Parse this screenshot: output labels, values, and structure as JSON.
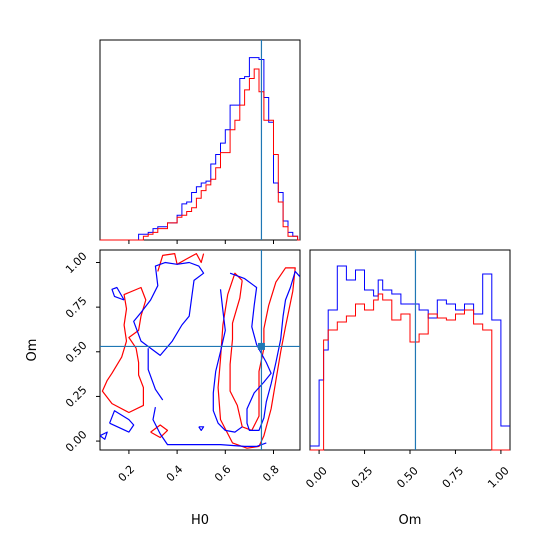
{
  "colors": {
    "series_a": "#0000ff",
    "series_b": "#ff0000",
    "truth": "#1f77b4"
  },
  "chart_data": [
    {
      "type": "histogram",
      "panel": "H0 marginal",
      "xlim": [
        0.08,
        0.91
      ],
      "bin_edges": [
        0.08,
        0.1,
        0.12,
        0.14,
        0.16,
        0.18,
        0.2,
        0.22,
        0.24,
        0.26,
        0.28,
        0.3,
        0.32,
        0.34,
        0.36,
        0.38,
        0.4,
        0.42,
        0.44,
        0.46,
        0.48,
        0.5,
        0.52,
        0.54,
        0.56,
        0.58,
        0.6,
        0.62,
        0.64,
        0.66,
        0.68,
        0.7,
        0.72,
        0.74,
        0.76,
        0.78,
        0.8,
        0.82,
        0.84,
        0.86,
        0.88,
        0.9,
        0.91
      ],
      "series": [
        {
          "color": "blue",
          "values": [
            0,
            0,
            0,
            0,
            0,
            0,
            0,
            0,
            0.03,
            0.03,
            0.04,
            0.06,
            0.07,
            0.07,
            0.09,
            0.09,
            0.13,
            0.19,
            0.2,
            0.25,
            0.28,
            0.3,
            0.31,
            0.4,
            0.45,
            0.51,
            0.58,
            0.71,
            0.71,
            0.85,
            0.86,
            0.96,
            0.96,
            0.95,
            0.75,
            0.62,
            0.3,
            0.25,
            0.1,
            0.04,
            0.02,
            0
          ]
        },
        {
          "color": "red",
          "values": [
            0,
            0,
            0,
            0,
            0,
            0,
            0,
            0,
            0,
            0.02,
            0.03,
            0.04,
            0.06,
            0.06,
            0.09,
            0.09,
            0.12,
            0.13,
            0.15,
            0.17,
            0.22,
            0.26,
            0.29,
            0.32,
            0.38,
            0.46,
            0.46,
            0.58,
            0.63,
            0.71,
            0.79,
            0.85,
            0.9,
            0.78,
            0.63,
            0.63,
            0.45,
            0.2,
            0.07,
            0.02,
            0.02,
            0
          ]
        }
      ],
      "truth": 0.75,
      "xticks": [
        0.2,
        0.4,
        0.6,
        0.8
      ]
    },
    {
      "type": "contour",
      "panel": "H0 vs Om joint",
      "xlabel": "H0",
      "ylabel": "Om",
      "xlim": [
        0.08,
        0.91
      ],
      "ylim": [
        -0.05,
        1.07
      ],
      "truth": {
        "x": 0.75,
        "y": 0.53
      },
      "xticks": [
        0.2,
        0.4,
        0.6,
        0.8
      ],
      "xticklabels": [
        "0.2",
        "0.4",
        "0.6",
        "0.8"
      ],
      "yticks": [
        0.0,
        0.25,
        0.5,
        0.75,
        1.0
      ],
      "yticklabels": [
        "0.00",
        "0.25",
        "0.50",
        "0.75",
        "1.00"
      ],
      "series": [
        {
          "color": "red",
          "contours": [
            [
              [
                0.13,
                0.38
              ],
              [
                0.17,
                0.47
              ],
              [
                0.19,
                0.56
              ],
              [
                0.18,
                0.65
              ],
              [
                0.19,
                0.74
              ],
              [
                0.18,
                0.82
              ],
              [
                0.25,
                0.86
              ],
              [
                0.27,
                0.79
              ],
              [
                0.25,
                0.7
              ],
              [
                0.24,
                0.62
              ],
              [
                0.2,
                0.58
              ],
              [
                0.23,
                0.52
              ],
              [
                0.24,
                0.44
              ],
              [
                0.24,
                0.37
              ],
              [
                0.26,
                0.3
              ],
              [
                0.26,
                0.2
              ],
              [
                0.2,
                0.16
              ],
              [
                0.13,
                0.21
              ],
              [
                0.09,
                0.28
              ],
              [
                0.11,
                0.34
              ],
              [
                0.13,
                0.38
              ]
            ],
            [
              [
                0.67,
                0.9
              ],
              [
                0.66,
                0.8
              ],
              [
                0.63,
                0.66
              ],
              [
                0.63,
                0.57
              ],
              [
                0.62,
                0.43
              ],
              [
                0.62,
                0.28
              ],
              [
                0.65,
                0.2
              ],
              [
                0.67,
                0.08
              ],
              [
                0.71,
                0.06
              ],
              [
                0.74,
                0.14
              ],
              [
                0.74,
                0.27
              ],
              [
                0.74,
                0.39
              ],
              [
                0.76,
                0.52
              ],
              [
                0.76,
                0.63
              ],
              [
                0.78,
                0.76
              ],
              [
                0.81,
                0.89
              ],
              [
                0.85,
                0.97
              ],
              [
                0.89,
                0.97
              ],
              [
                0.88,
                0.84
              ],
              [
                0.85,
                0.64
              ],
              [
                0.83,
                0.5
              ],
              [
                0.81,
                0.34
              ],
              [
                0.79,
                0.18
              ],
              [
                0.76,
                0.03
              ],
              [
                0.74,
                -0.03
              ],
              [
                0.69,
                -0.04
              ],
              [
                0.63,
                -0.01
              ],
              [
                0.58,
                0.12
              ],
              [
                0.57,
                0.3
              ],
              [
                0.58,
                0.46
              ],
              [
                0.59,
                0.65
              ],
              [
                0.61,
                0.82
              ],
              [
                0.64,
                0.94
              ],
              [
                0.67,
                0.9
              ]
            ],
            [
              [
                0.32,
                0.95
              ],
              [
                0.34,
                1.04
              ],
              [
                0.39,
                1.05
              ],
              [
                0.4,
                0.99
              ],
              [
                0.44,
                1.02
              ],
              [
                0.48,
                1.05
              ],
              [
                0.5,
                1.0
              ],
              [
                0.51,
                1.05
              ]
            ],
            [
              [
                0.29,
                0.05
              ],
              [
                0.33,
                0.02
              ],
              [
                0.36,
                0.06
              ],
              [
                0.33,
                0.09
              ],
              [
                0.29,
                0.05
              ]
            ]
          ]
        },
        {
          "color": "blue",
          "contours": [
            [
              [
                0.42,
                0.65
              ],
              [
                0.38,
                0.56
              ],
              [
                0.33,
                0.48
              ],
              [
                0.25,
                0.56
              ],
              [
                0.22,
                0.67
              ],
              [
                0.25,
                0.72
              ],
              [
                0.29,
                0.79
              ],
              [
                0.32,
                0.87
              ],
              [
                0.31,
                0.98
              ],
              [
                0.35,
                1.0
              ],
              [
                0.4,
                0.99
              ],
              [
                0.45,
                1.0
              ],
              [
                0.49,
                0.98
              ],
              [
                0.51,
                0.94
              ],
              [
                0.47,
                0.9
              ],
              [
                0.46,
                0.8
              ],
              [
                0.45,
                0.7
              ],
              [
                0.42,
                0.65
              ]
            ],
            [
              [
                0.62,
                0.94
              ],
              [
                0.68,
                0.91
              ],
              [
                0.73,
                0.86
              ],
              [
                0.72,
                0.76
              ],
              [
                0.71,
                0.64
              ],
              [
                0.73,
                0.54
              ],
              [
                0.77,
                0.44
              ],
              [
                0.79,
                0.38
              ],
              [
                0.76,
                0.33
              ],
              [
                0.72,
                0.27
              ],
              [
                0.69,
                0.18
              ],
              [
                0.69,
                0.1
              ],
              [
                0.7,
                0.06
              ],
              [
                0.74,
                0.06
              ],
              [
                0.76,
                0.13
              ],
              [
                0.77,
                0.22
              ],
              [
                0.79,
                0.32
              ],
              [
                0.81,
                0.44
              ],
              [
                0.83,
                0.57
              ],
              [
                0.84,
                0.7
              ],
              [
                0.85,
                0.79
              ],
              [
                0.87,
                0.86
              ],
              [
                0.89,
                0.95
              ],
              [
                0.91,
                0.92
              ]
            ],
            [
              [
                0.58,
                0.85
              ],
              [
                0.59,
                0.73
              ],
              [
                0.6,
                0.62
              ],
              [
                0.58,
                0.5
              ],
              [
                0.56,
                0.39
              ],
              [
                0.55,
                0.27
              ],
              [
                0.55,
                0.17
              ],
              [
                0.57,
                0.1
              ],
              [
                0.6,
                0.06
              ],
              [
                0.64,
                0.05
              ],
              [
                0.67,
                0.08
              ]
            ],
            [
              [
                0.34,
                0.23
              ],
              [
                0.31,
                0.29
              ],
              [
                0.28,
                0.4
              ],
              [
                0.28,
                0.52
              ]
            ],
            [
              [
                0.31,
                0.19
              ],
              [
                0.3,
                0.12
              ],
              [
                0.33,
                0.04
              ],
              [
                0.36,
                -0.02
              ],
              [
                0.45,
                -0.02
              ],
              [
                0.58,
                -0.02
              ],
              [
                0.68,
                -0.03
              ],
              [
                0.73,
                -0.03
              ],
              [
                0.77,
                -0.01
              ]
            ],
            [
              [
                0.18,
                0.79
              ],
              [
                0.14,
                0.81
              ],
              [
                0.13,
                0.85
              ],
              [
                0.15,
                0.86
              ],
              [
                0.18,
                0.79
              ]
            ],
            [
              [
                0.12,
                0.1
              ],
              [
                0.14,
                0.17
              ],
              [
                0.2,
                0.12
              ],
              [
                0.22,
                0.09
              ],
              [
                0.2,
                0.05
              ],
              [
                0.12,
                0.1
              ]
            ],
            [
              [
                0.08,
                0.03
              ],
              [
                0.1,
                0.01
              ],
              [
                0.11,
                0.05
              ],
              [
                0.08,
                0.03
              ]
            ],
            [
              [
                0.49,
                0.08
              ],
              [
                0.5,
                0.06
              ],
              [
                0.51,
                0.08
              ],
              [
                0.49,
                0.08
              ]
            ]
          ]
        }
      ]
    },
    {
      "type": "histogram",
      "panel": "Om marginal",
      "xlabel": "Om",
      "xlim": [
        -0.05,
        1.05
      ],
      "bin_edges": [
        -0.05,
        0,
        0.025,
        0.05,
        0.1,
        0.15,
        0.2,
        0.25,
        0.3,
        0.325,
        0.35,
        0.4,
        0.45,
        0.5,
        0.55,
        0.6,
        0.65,
        0.7,
        0.75,
        0.8,
        0.85,
        0.9,
        0.95,
        1.0,
        1.05
      ],
      "series": [
        {
          "color": "blue",
          "values": [
            0.02,
            0.35,
            0.5,
            0.7,
            0.92,
            0.85,
            0.9,
            0.8,
            0.77,
            0.85,
            0.8,
            0.78,
            0.73,
            0.73,
            0.7,
            0.66,
            0.75,
            0.73,
            0.7,
            0.73,
            0.68,
            0.88,
            0.65,
            0.12
          ]
        },
        {
          "color": "red",
          "values": [
            0,
            0,
            0.55,
            0.6,
            0.64,
            0.67,
            0.73,
            0.7,
            0.75,
            0.78,
            0.75,
            0.65,
            0.68,
            0.54,
            0.58,
            0.68,
            0.66,
            0.65,
            0.68,
            0.7,
            0.63,
            0.6,
            0,
            0
          ]
        }
      ],
      "truth": 0.53,
      "xticks": [
        0.0,
        0.25,
        0.5,
        0.75,
        1.0
      ],
      "xticklabels": [
        "0.00",
        "0.25",
        "0.50",
        "0.75",
        "1.00"
      ]
    }
  ]
}
